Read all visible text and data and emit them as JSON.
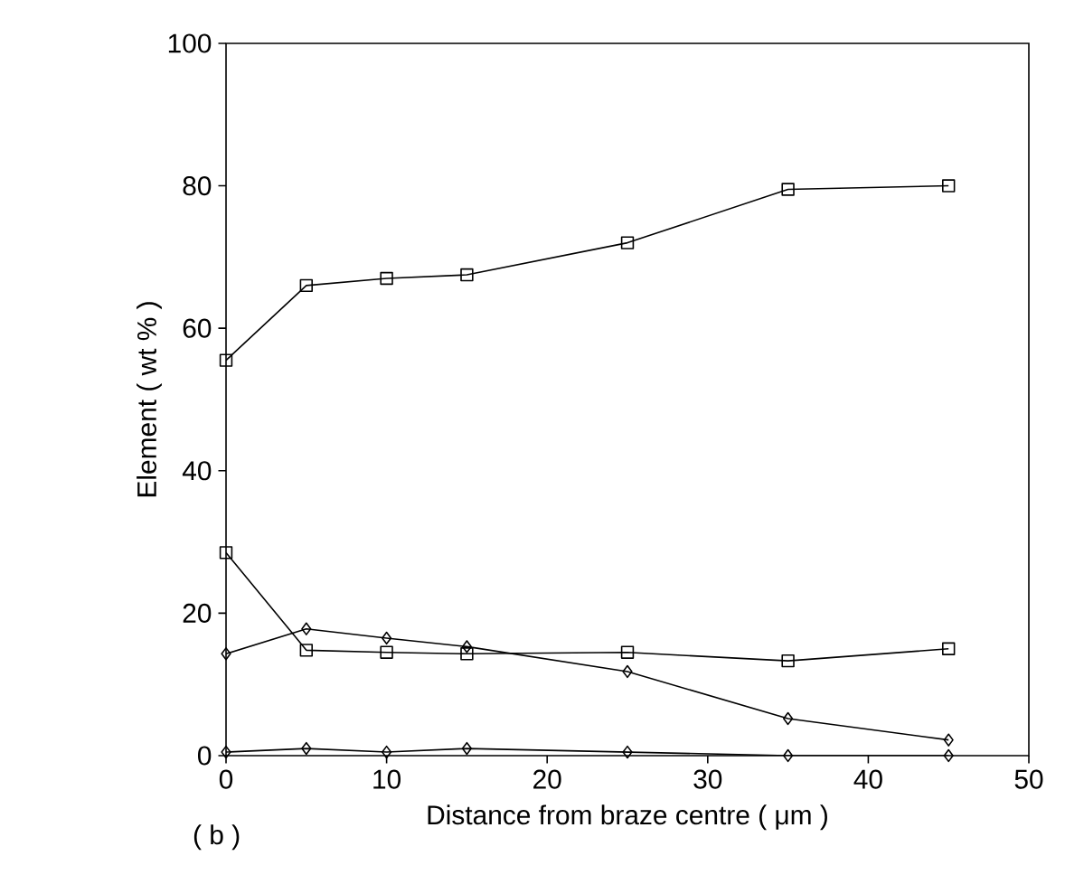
{
  "chart_data": {
    "type": "line",
    "xlabel": "Distance from braze centre ( μm )",
    "ylabel": "Element ( wt % )",
    "annotations": [
      "( b )"
    ],
    "x": [
      0,
      5,
      10,
      15,
      25,
      35,
      45
    ],
    "series": [
      {
        "color": "#000000",
        "marker": "square",
        "values": [
          55.5,
          66,
          67,
          67.5,
          72,
          79.5,
          80
        ]
      },
      {
        "color": "#000000",
        "marker": "square",
        "values": [
          28.5,
          14.8,
          14.5,
          14.3,
          14.5,
          13.3,
          15
        ]
      },
      {
        "color": "#000000",
        "marker": "diamond",
        "values": [
          14.3,
          17.8,
          16.5,
          15.3,
          11.8,
          5.2,
          2.2
        ]
      },
      {
        "color": "#000000",
        "marker": "diamond",
        "values": [
          0.5,
          1,
          0.5,
          1,
          0.5,
          0,
          0
        ]
      }
    ],
    "xlim": [
      0,
      50
    ],
    "ylim": [
      0,
      100
    ],
    "xticks": [
      0,
      10,
      20,
      30,
      40,
      50
    ],
    "yticks": [
      0,
      20,
      40,
      60,
      80,
      100
    ],
    "line_style": "solid"
  }
}
